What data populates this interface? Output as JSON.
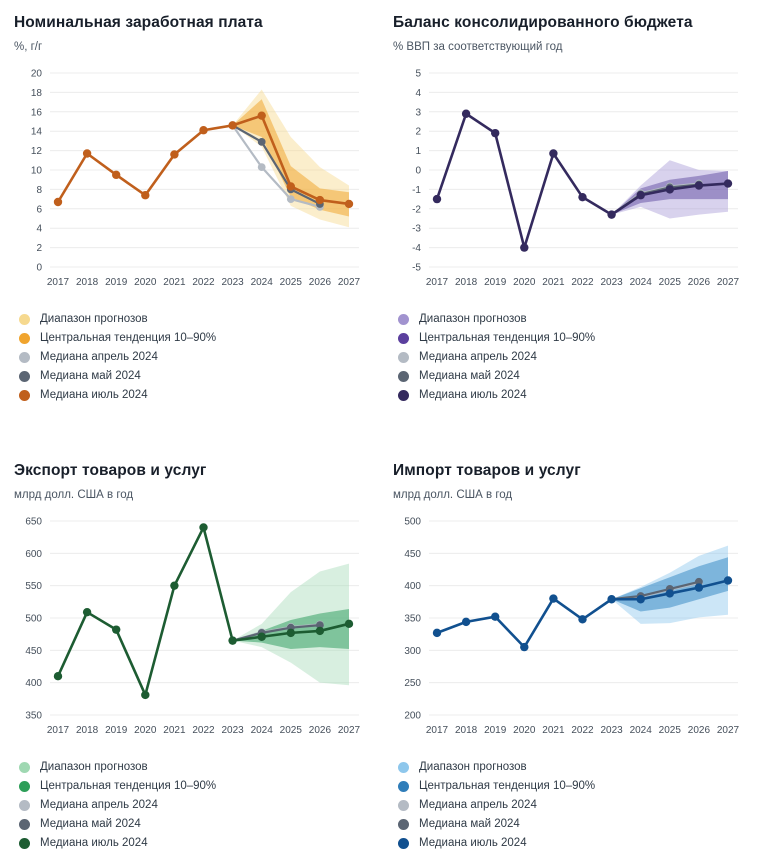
{
  "legend_labels": [
    "Диапазон прогнозов",
    "Центральная тенденция 10–90%",
    "Медиана апрель 2024",
    "Медиана май 2024",
    "Медиана июль 2024"
  ],
  "chart_data": [
    {
      "type": "line",
      "title": "Номинальная заработная плата",
      "subtitle": "%, г/г",
      "xlabel": "",
      "ylabel": "%, г/г",
      "ylim": [
        0,
        20
      ],
      "ytick_step": 2,
      "grid": true,
      "legend_position": "bottom",
      "x": [
        2017,
        2018,
        2019,
        2020,
        2021,
        2022,
        2023,
        2024,
        2025,
        2026,
        2027
      ],
      "colors": {
        "range": "#f6d98f",
        "central": "#f1a832",
        "april": "#b4bbc4",
        "may": "#5b6573",
        "july": "#c05f1c"
      },
      "legend_colors": [
        "#f6d98f",
        "#f0a42e",
        "#b4bbc4",
        "#5b6573",
        "#c05f1c"
      ],
      "bands": {
        "range": {
          "years": [
            2023,
            2024,
            2025,
            2026,
            2027
          ],
          "lower": [
            14.6,
            12.4,
            6.3,
            4.9,
            4.1
          ],
          "upper": [
            14.6,
            18.3,
            13.4,
            10.3,
            8.4
          ]
        },
        "central": {
          "years": [
            2023,
            2024,
            2025,
            2026,
            2027
          ],
          "lower": [
            14.6,
            13.4,
            7.2,
            5.9,
            5.2
          ],
          "upper": [
            14.6,
            17.3,
            10.4,
            8.1,
            7.7
          ]
        }
      },
      "series": [
        {
          "name": "Медиана апрель 2024",
          "key": "april",
          "years": [
            2023,
            2024,
            2025,
            2026
          ],
          "values": [
            14.6,
            10.3,
            7.0,
            6.2
          ]
        },
        {
          "name": "Медиана май 2024",
          "key": "may",
          "years": [
            2023,
            2024,
            2025,
            2026
          ],
          "values": [
            14.6,
            12.9,
            8.0,
            6.5
          ]
        },
        {
          "name": "Медиана июль 2024",
          "key": "july",
          "years": [
            2017,
            2018,
            2019,
            2020,
            2021,
            2022,
            2023,
            2024,
            2025,
            2026,
            2027
          ],
          "values": [
            6.7,
            11.7,
            9.5,
            7.4,
            11.6,
            14.1,
            14.6,
            15.6,
            8.3,
            6.9,
            6.5
          ]
        }
      ]
    },
    {
      "type": "line",
      "title": "Баланс консолидированного бюджета",
      "subtitle": "% ВВП за соответствующий год",
      "xlabel": "",
      "ylabel": "% ВВП",
      "ylim": [
        -5,
        5
      ],
      "ytick_step": 1,
      "grid": true,
      "legend_position": "bottom",
      "x": [
        2017,
        2018,
        2019,
        2020,
        2021,
        2022,
        2023,
        2024,
        2025,
        2026,
        2027
      ],
      "colors": {
        "range": "#a89bd6",
        "central": "#6c58a8",
        "april": "#b4bbc4",
        "may": "#5b6573",
        "july": "#342a5e"
      },
      "legend_colors": [
        "#a193cf",
        "#5b3f9e",
        "#b4bbc4",
        "#5b6573",
        "#342a5e"
      ],
      "bands": {
        "range": {
          "years": [
            2023,
            2024,
            2025,
            2026,
            2027
          ],
          "lower": [
            -2.3,
            -1.9,
            -2.5,
            -2.3,
            -2.15
          ],
          "upper": [
            -2.3,
            -0.8,
            0.5,
            0.0,
            -0.05
          ]
        },
        "central": {
          "years": [
            2023,
            2024,
            2025,
            2026,
            2027
          ],
          "lower": [
            -2.3,
            -1.7,
            -1.5,
            -1.5,
            -1.5
          ],
          "upper": [
            -2.3,
            -0.95,
            -0.5,
            -0.3,
            -0.05
          ]
        }
      },
      "series": [
        {
          "name": "Медиана апрель 2024",
          "key": "april",
          "years": [
            2023,
            2024,
            2025,
            2026
          ],
          "values": [
            -2.3,
            -1.2,
            -0.85,
            -0.7
          ]
        },
        {
          "name": "Медиана май 2024",
          "key": "may",
          "years": [
            2023,
            2024,
            2025,
            2026
          ],
          "values": [
            -2.3,
            -1.25,
            -0.9,
            -0.75
          ]
        },
        {
          "name": "Медиана июль 2024",
          "key": "july",
          "years": [
            2017,
            2018,
            2019,
            2020,
            2021,
            2022,
            2023,
            2024,
            2025,
            2026,
            2027
          ],
          "values": [
            -1.5,
            2.9,
            1.9,
            -4.0,
            0.85,
            -1.4,
            -2.3,
            -1.3,
            -1.0,
            -0.8,
            -0.7
          ]
        }
      ]
    },
    {
      "type": "line",
      "title": "Экспорт товаров и услуг",
      "subtitle": "млрд долл. США в год",
      "xlabel": "",
      "ylabel": "млрд долл. США",
      "ylim": [
        350,
        650
      ],
      "ytick_step": 50,
      "grid": true,
      "legend_position": "bottom",
      "x": [
        2017,
        2018,
        2019,
        2020,
        2021,
        2022,
        2023,
        2024,
        2025,
        2026,
        2027
      ],
      "colors": {
        "range": "#a9dcba",
        "central": "#37a164",
        "april": "#b4bbc4",
        "may": "#5b6573",
        "july": "#1d5c32"
      },
      "legend_colors": [
        "#9fd8b2",
        "#2d9e58",
        "#b4bbc4",
        "#5b6573",
        "#1d5c32"
      ],
      "bands": {
        "range": {
          "years": [
            2023,
            2024,
            2025,
            2026,
            2027
          ],
          "lower": [
            465,
            455,
            431,
            400,
            396
          ],
          "upper": [
            465,
            491,
            540,
            572,
            584
          ]
        },
        "central": {
          "years": [
            2023,
            2024,
            2025,
            2026,
            2027
          ],
          "lower": [
            465,
            462,
            452,
            455,
            452
          ],
          "upper": [
            465,
            480,
            497,
            507,
            514
          ]
        }
      },
      "series": [
        {
          "name": "Медиана апрель 2024",
          "key": "april",
          "years": [
            2023,
            2024,
            2025,
            2026
          ],
          "values": [
            465,
            478,
            486,
            490
          ]
        },
        {
          "name": "Медиана май 2024",
          "key": "may",
          "years": [
            2023,
            2024,
            2025,
            2026
          ],
          "values": [
            465,
            477,
            485,
            489
          ]
        },
        {
          "name": "Медиана июль 2024",
          "key": "july",
          "years": [
            2017,
            2018,
            2019,
            2020,
            2021,
            2022,
            2023,
            2024,
            2025,
            2026,
            2027
          ],
          "values": [
            410,
            509,
            482,
            381,
            550,
            640,
            465,
            471,
            477,
            480,
            491
          ]
        }
      ]
    },
    {
      "type": "line",
      "title": "Импорт товаров и услуг",
      "subtitle": "млрд долл. США в год",
      "xlabel": "",
      "ylabel": "млрд долл. США",
      "ylim": [
        200,
        500
      ],
      "ytick_step": 50,
      "grid": true,
      "legend_position": "bottom",
      "x": [
        2017,
        2018,
        2019,
        2020,
        2021,
        2022,
        2023,
        2024,
        2025,
        2026,
        2027
      ],
      "colors": {
        "range": "#8fc8ed",
        "central": "#3c8dc6",
        "april": "#b4bbc4",
        "may": "#5b6573",
        "july": "#11508f"
      },
      "legend_colors": [
        "#8ec7ec",
        "#2f7db9",
        "#b4bbc4",
        "#5b6573",
        "#11508f"
      ],
      "bands": {
        "range": {
          "years": [
            2023,
            2024,
            2025,
            2026,
            2027
          ],
          "lower": [
            379,
            341,
            342,
            351,
            355
          ],
          "upper": [
            379,
            398,
            420,
            446,
            462
          ]
        },
        "central": {
          "years": [
            2023,
            2024,
            2025,
            2026,
            2027
          ],
          "lower": [
            379,
            360,
            366,
            379,
            392
          ],
          "upper": [
            379,
            396,
            413,
            430,
            444
          ]
        }
      },
      "series": [
        {
          "name": "Медиана апрель 2024",
          "key": "april",
          "years": [
            2023,
            2024,
            2025,
            2026
          ],
          "values": [
            379,
            383,
            394,
            404
          ]
        },
        {
          "name": "Медиана май 2024",
          "key": "may",
          "years": [
            2023,
            2024,
            2025,
            2026
          ],
          "values": [
            379,
            384,
            395,
            406
          ]
        },
        {
          "name": "Медиана июль 2024",
          "key": "july",
          "years": [
            2017,
            2018,
            2019,
            2020,
            2021,
            2022,
            2023,
            2024,
            2025,
            2026,
            2027
          ],
          "values": [
            327,
            344,
            352,
            305,
            380,
            348,
            379,
            379,
            388,
            397,
            408
          ]
        }
      ]
    }
  ]
}
